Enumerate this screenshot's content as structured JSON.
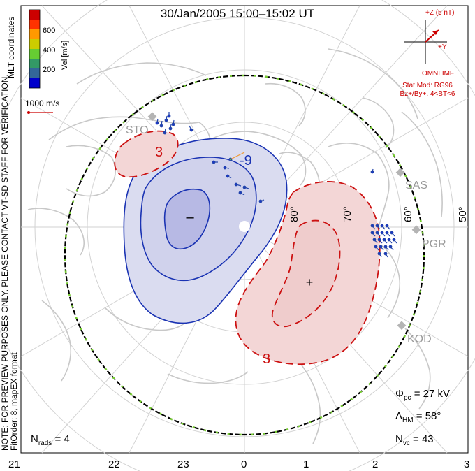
{
  "title": "30/Jan/2005 15:00–15:02 UT",
  "coordinates_label": "MLT coordinates",
  "velocity_scale": {
    "label": "Vel [m/s]",
    "ticks": [
      "600",
      "400",
      "200"
    ],
    "colors": [
      "#0000cc",
      "#336699",
      "#339966",
      "#66cc33",
      "#cccc00",
      "#ff9900",
      "#ff3300",
      "#cc0000"
    ]
  },
  "reference_vector": {
    "label": "1000 m/s"
  },
  "notes": [
    "NOTE: FOR PREVIEW PURPOSES ONLY. PLEASE CONTACT VT-SD STAFF FOR VERIFICATION.",
    "FitOrder: 8, mapEX format"
  ],
  "imf": {
    "bz_label": "+Z (5 nT)",
    "by_label": "+Y",
    "source": "OMNI IMF",
    "model_line1": "Stat Mod: RG96",
    "model_line2": "Bz+/By+, 4<BT<6"
  },
  "contour_labels": {
    "negative": "-9",
    "positive": "3",
    "positive_bottom": "3",
    "min_symbol": "–",
    "max_symbol": "+"
  },
  "latitude_labels": [
    "80°",
    "70°",
    "60°",
    "50°"
  ],
  "radar_stations": [
    "STO",
    "SAS",
    "PGR",
    "KOD"
  ],
  "stats": {
    "phi_pc_label": "Φpc = 27 kV",
    "phi_symbol": "Φ",
    "phi_sub": "pc",
    "phi_value": " = 27 kV",
    "lambda_symbol": "Λ",
    "lambda_sub": "HM",
    "lambda_value": " = 58°",
    "nvc_symbol": "N",
    "nvc_sub": "vc",
    "nvc_value": " = 43",
    "nrads_symbol": "N",
    "nrads_sub": "rads",
    "nrads_value": " = 4"
  },
  "mlt_axis": [
    "21",
    "22",
    "23",
    "0",
    "1",
    "2",
    "3"
  ],
  "colors": {
    "negative_contour": "#1a33b3",
    "negative_fill": "#dadcf0",
    "positive_contour": "#cc1111",
    "positive_fill": "#f3d6d6",
    "coast": "#c8c8c8",
    "grid": "#d2d2d2",
    "hmb_green": "#77cc33"
  }
}
